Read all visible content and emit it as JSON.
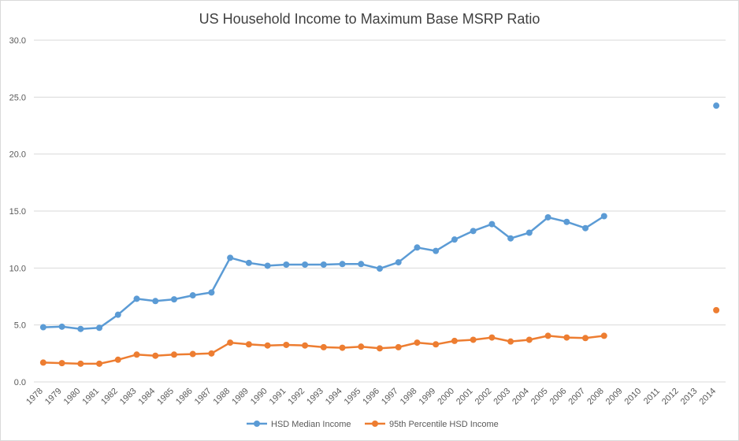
{
  "chart_data": {
    "type": "line",
    "title": "US Household Income to Maximum Base MSRP Ratio",
    "xlabel": "",
    "ylabel": "",
    "ylim": [
      0,
      30
    ],
    "yticks": [
      "0.0",
      "5.0",
      "10.0",
      "15.0",
      "20.0",
      "25.0",
      "30.0"
    ],
    "grid": true,
    "legend_position": "bottom",
    "categories": [
      "1978",
      "1979",
      "1980",
      "1981",
      "1982",
      "1983",
      "1984",
      "1985",
      "1986",
      "1987",
      "1988",
      "1989",
      "1990",
      "1991",
      "1992",
      "1993",
      "1994",
      "1995",
      "1996",
      "1997",
      "1998",
      "1999",
      "2000",
      "2001",
      "2002",
      "2003",
      "2004",
      "2005",
      "2006",
      "2007",
      "2008",
      "2009",
      "2010",
      "2011",
      "2012",
      "2013",
      "2014"
    ],
    "series": [
      {
        "name": "HSD Median Income",
        "color": "#5B9BD5",
        "values": [
          4.8,
          4.85,
          4.65,
          4.75,
          5.9,
          7.3,
          7.1,
          7.25,
          7.6,
          7.85,
          10.9,
          10.45,
          10.2,
          10.3,
          10.3,
          10.3,
          10.35,
          10.35,
          9.95,
          10.5,
          11.8,
          11.5,
          12.5,
          13.25,
          13.85,
          12.6,
          13.1,
          14.45,
          14.05,
          13.5,
          14.55,
          null,
          null,
          null,
          null,
          null,
          24.25
        ]
      },
      {
        "name": "95th Percentile HSD Income",
        "color": "#ED7D31",
        "values": [
          1.7,
          1.65,
          1.6,
          1.6,
          1.95,
          2.4,
          2.3,
          2.4,
          2.45,
          2.5,
          3.45,
          3.3,
          3.2,
          3.25,
          3.2,
          3.05,
          3.0,
          3.1,
          2.95,
          3.05,
          3.45,
          3.3,
          3.6,
          3.7,
          3.9,
          3.55,
          3.7,
          4.05,
          3.9,
          3.85,
          4.05,
          null,
          null,
          null,
          null,
          null,
          6.3
        ]
      }
    ]
  }
}
